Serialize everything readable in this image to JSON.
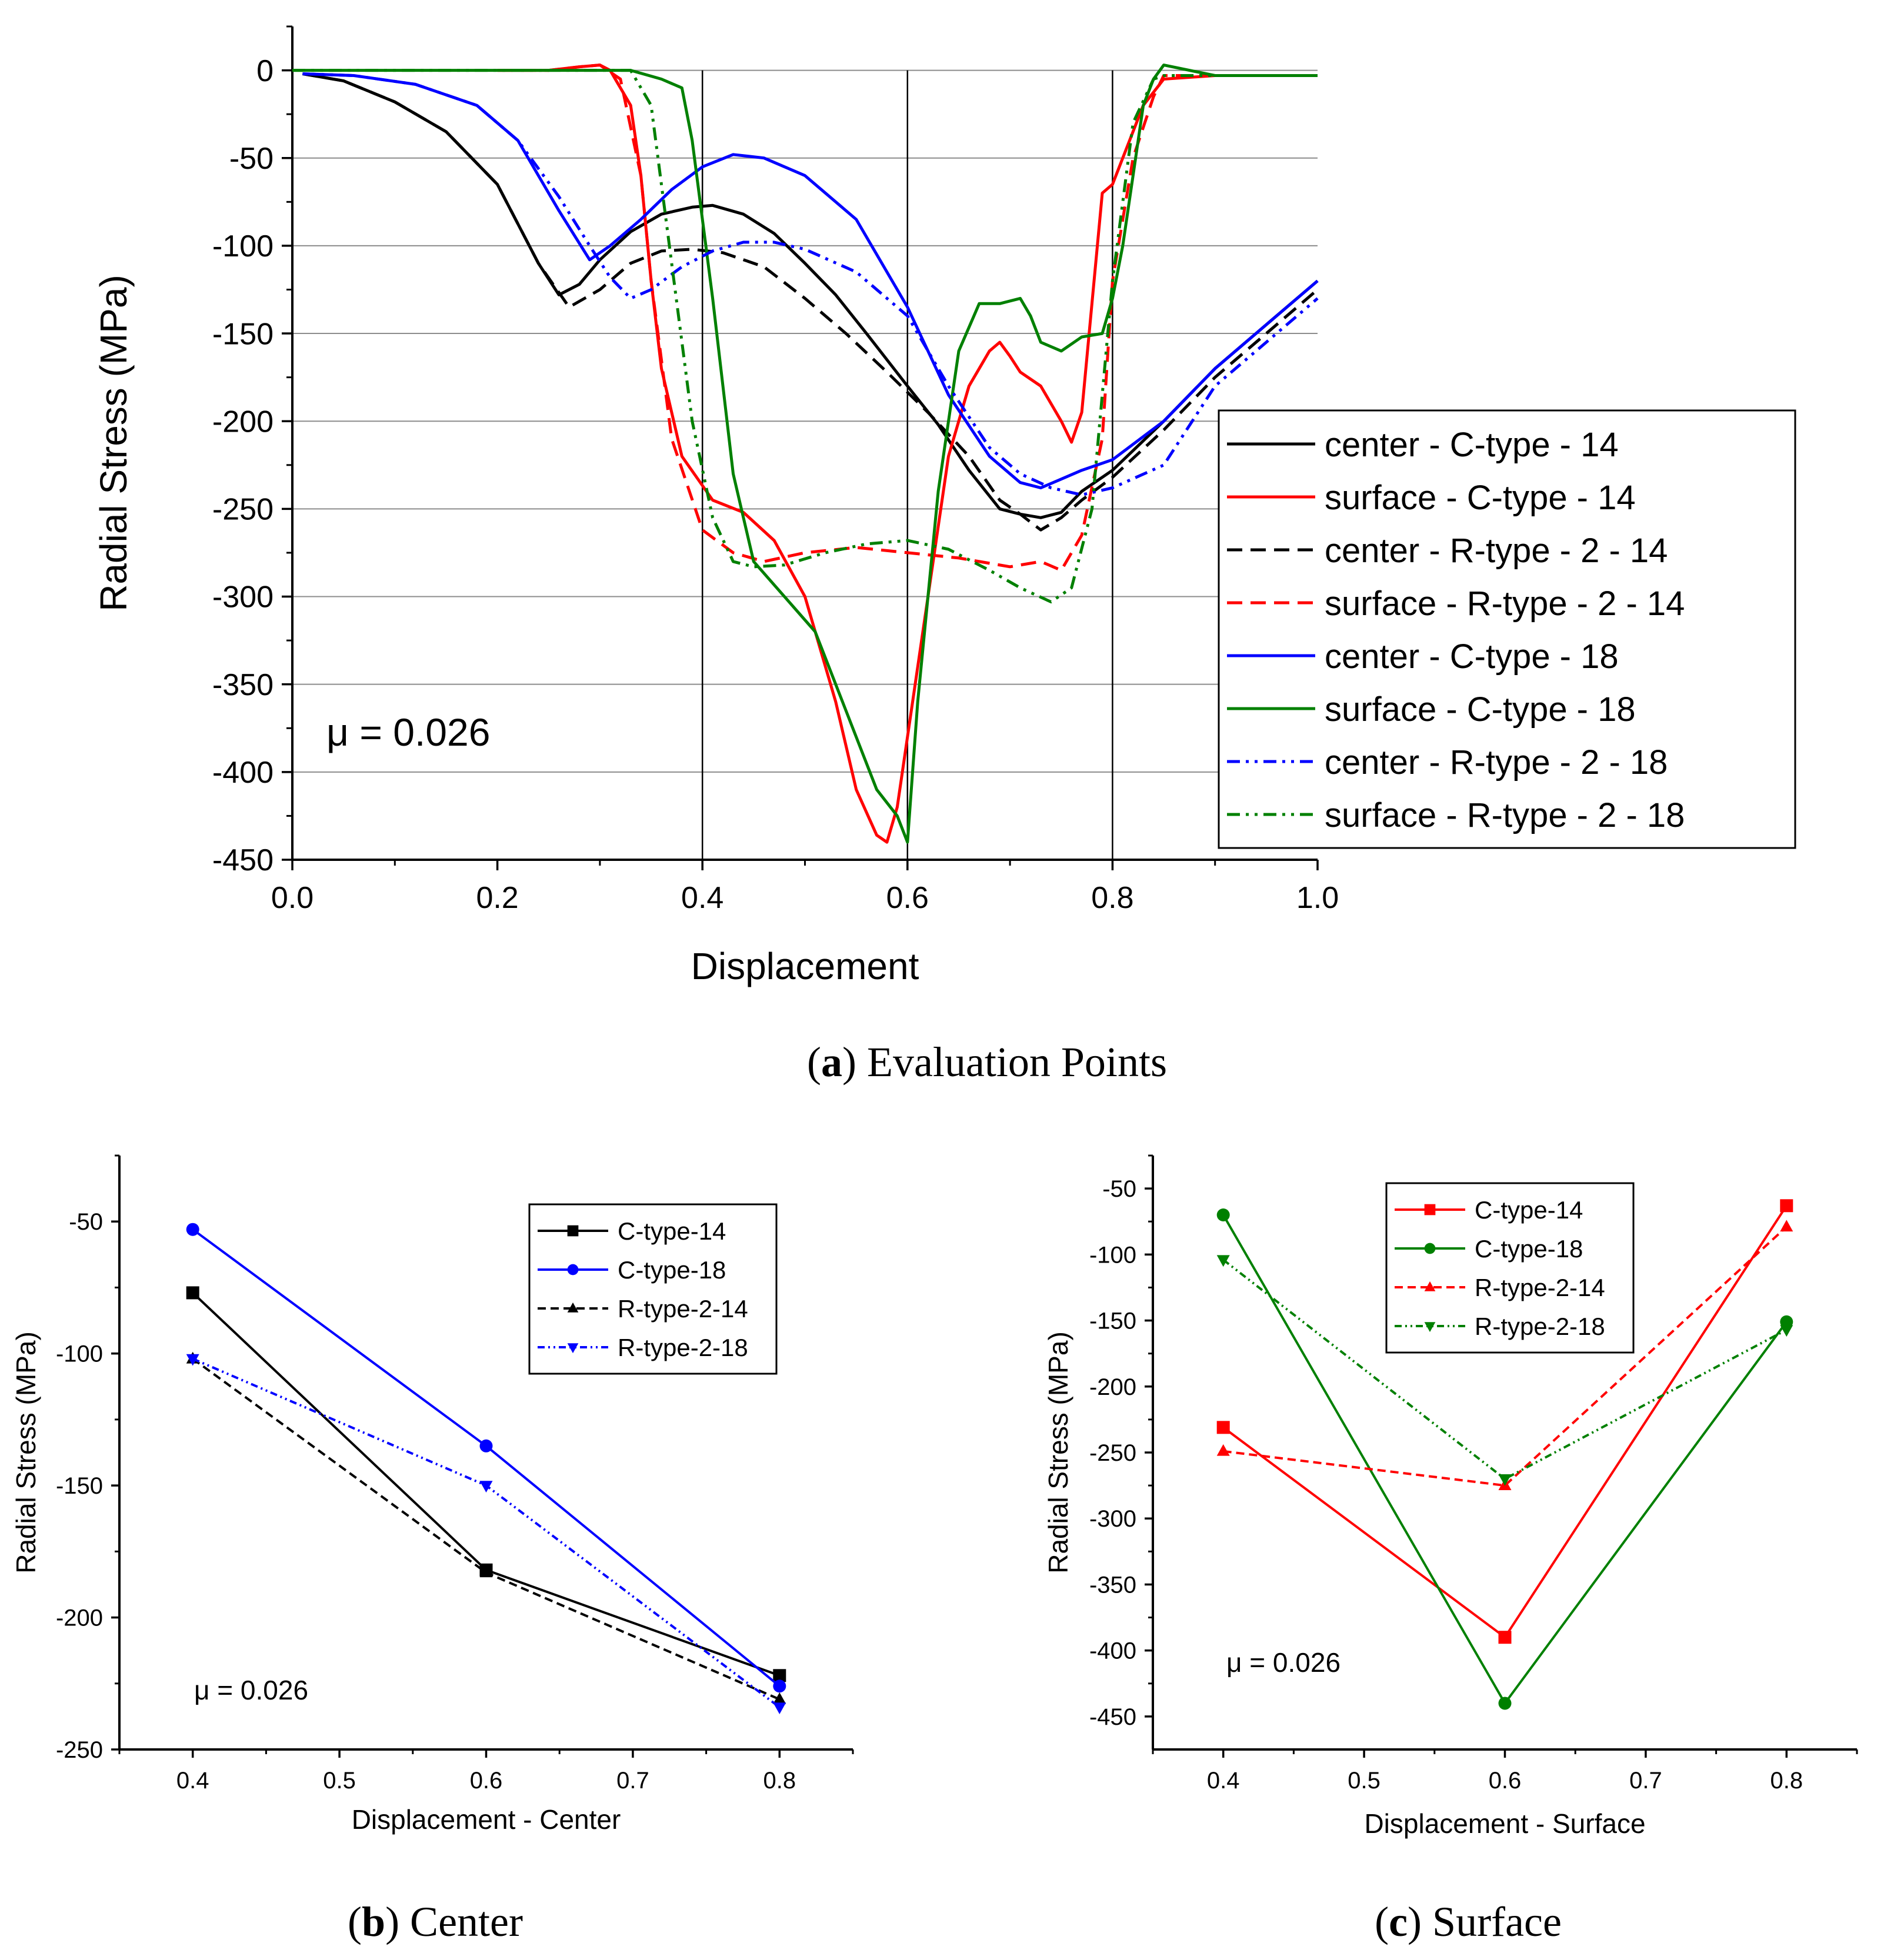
{
  "chart_data": [
    {
      "type": "line",
      "title": "",
      "caption_letter": "a",
      "caption_text": "Evaluation Points",
      "xlabel": "Displacement",
      "ylabel": "Radial Stress (MPa)",
      "xlim": [
        0.0,
        1.0
      ],
      "ylim": [
        -450,
        25
      ],
      "xticks": [
        0.0,
        0.2,
        0.4,
        0.6,
        0.8,
        1.0
      ],
      "xtick_labels": [
        "0.0",
        "0.2",
        "0.4",
        "0.6",
        "0.8",
        "1.0"
      ],
      "yticks": [
        0,
        -50,
        -100,
        -150,
        -200,
        -250,
        -300,
        -350,
        -400,
        -450
      ],
      "ytick_labels": [
        "0",
        "-50",
        "-100",
        "-150",
        "-200",
        "-250",
        "-300",
        "-350",
        "-400",
        "-450"
      ],
      "annotation": "μ = 0.026",
      "vertical_lines": [
        0.4,
        0.6,
        0.8
      ],
      "legend_position": "center-right",
      "series": [
        {
          "name": "center - C-type - 14",
          "color": "#000000",
          "dash": "solid",
          "x": [
            0.01,
            0.05,
            0.1,
            0.15,
            0.2,
            0.24,
            0.26,
            0.28,
            0.3,
            0.33,
            0.36,
            0.39,
            0.41,
            0.44,
            0.47,
            0.5,
            0.53,
            0.56,
            0.6,
            0.63,
            0.66,
            0.69,
            0.71,
            0.73,
            0.75,
            0.77,
            0.8,
            0.85,
            0.9,
            0.95,
            1.0
          ],
          "y": [
            -2,
            -6,
            -18,
            -35,
            -65,
            -110,
            -128,
            -122,
            -108,
            -92,
            -82,
            -78,
            -77,
            -82,
            -93,
            -110,
            -128,
            -150,
            -180,
            -202,
            -228,
            -250,
            -253,
            -255,
            -252,
            -240,
            -228,
            -200,
            -170,
            -145,
            -120
          ]
        },
        {
          "name": "surface - C-type - 14",
          "color": "#ff0000",
          "dash": "solid",
          "x": [
            0.2,
            0.25,
            0.28,
            0.3,
            0.31,
            0.33,
            0.34,
            0.35,
            0.36,
            0.38,
            0.41,
            0.44,
            0.47,
            0.5,
            0.53,
            0.55,
            0.57,
            0.58,
            0.59,
            0.6,
            0.62,
            0.64,
            0.66,
            0.68,
            0.69,
            0.7,
            0.71,
            0.73,
            0.75,
            0.76,
            0.77,
            0.79,
            0.8,
            0.81,
            0.83,
            0.85,
            0.9,
            0.95,
            1.0
          ],
          "y": [
            0,
            0,
            2,
            3,
            0,
            -20,
            -60,
            -120,
            -170,
            -220,
            -245,
            -252,
            -268,
            -300,
            -360,
            -410,
            -436,
            -440,
            -420,
            -380,
            -300,
            -220,
            -180,
            -160,
            -155,
            -163,
            -172,
            -180,
            -200,
            -212,
            -195,
            -70,
            -65,
            -50,
            -20,
            -5,
            -3,
            -3,
            -3
          ]
        },
        {
          "name": "center - R-type - 2 - 14",
          "color": "#000000",
          "dash": "dashed",
          "x": [
            0.01,
            0.05,
            0.1,
            0.15,
            0.2,
            0.24,
            0.27,
            0.3,
            0.33,
            0.36,
            0.39,
            0.42,
            0.46,
            0.5,
            0.54,
            0.58,
            0.62,
            0.66,
            0.69,
            0.71,
            0.73,
            0.75,
            0.77,
            0.8,
            0.85,
            0.9,
            0.95,
            1.0
          ],
          "y": [
            -2,
            -6,
            -18,
            -35,
            -65,
            -110,
            -135,
            -125,
            -110,
            -103,
            -102,
            -104,
            -112,
            -130,
            -150,
            -172,
            -195,
            -220,
            -245,
            -253,
            -262,
            -255,
            -245,
            -232,
            -205,
            -175,
            -150,
            -125
          ]
        },
        {
          "name": "surface - R-type - 2 - 14",
          "color": "#ff0000",
          "dash": "dashed",
          "x": [
            0.2,
            0.25,
            0.28,
            0.3,
            0.32,
            0.34,
            0.35,
            0.37,
            0.4,
            0.43,
            0.46,
            0.5,
            0.55,
            0.6,
            0.65,
            0.7,
            0.73,
            0.75,
            0.77,
            0.79,
            0.8,
            0.82,
            0.84,
            0.85,
            0.9,
            0.95,
            1.0
          ],
          "y": [
            0,
            0,
            2,
            3,
            -5,
            -60,
            -120,
            -210,
            -262,
            -275,
            -280,
            -275,
            -272,
            -275,
            -278,
            -283,
            -280,
            -285,
            -265,
            -210,
            -120,
            -50,
            -15,
            -3,
            -3,
            -3,
            -3
          ]
        },
        {
          "name": "center - C-type - 18",
          "color": "#0000ff",
          "dash": "solid",
          "x": [
            0.01,
            0.06,
            0.12,
            0.18,
            0.22,
            0.26,
            0.29,
            0.31,
            0.34,
            0.37,
            0.4,
            0.43,
            0.46,
            0.5,
            0.55,
            0.6,
            0.64,
            0.68,
            0.71,
            0.73,
            0.75,
            0.77,
            0.8,
            0.85,
            0.9,
            0.95,
            1.0
          ],
          "y": [
            -2,
            -3,
            -8,
            -20,
            -40,
            -80,
            -108,
            -100,
            -85,
            -68,
            -55,
            -48,
            -50,
            -60,
            -85,
            -135,
            -185,
            -220,
            -235,
            -238,
            -233,
            -228,
            -222,
            -200,
            -170,
            -145,
            -120
          ]
        },
        {
          "name": "surface - C-type - 18",
          "color": "#008000",
          "dash": "solid",
          "x": [
            0.0,
            0.1,
            0.2,
            0.3,
            0.33,
            0.36,
            0.38,
            0.39,
            0.41,
            0.43,
            0.45,
            0.48,
            0.51,
            0.54,
            0.57,
            0.59,
            0.6,
            0.61,
            0.63,
            0.65,
            0.67,
            0.69,
            0.71,
            0.72,
            0.73,
            0.75,
            0.77,
            0.79,
            0.8,
            0.81,
            0.82,
            0.83,
            0.84,
            0.85,
            0.9,
            0.95,
            1.0
          ],
          "y": [
            0,
            0,
            0,
            0,
            0,
            -5,
            -10,
            -40,
            -130,
            -230,
            -280,
            -300,
            -320,
            -365,
            -410,
            -425,
            -440,
            -360,
            -240,
            -160,
            -133,
            -133,
            -130,
            -140,
            -155,
            -160,
            -152,
            -150,
            -130,
            -100,
            -60,
            -20,
            -5,
            3,
            -3,
            -3,
            -3
          ]
        },
        {
          "name": "center - R-type - 2 - 18",
          "color": "#0000ff",
          "dash": "dashdotdot",
          "x": [
            0.01,
            0.06,
            0.12,
            0.18,
            0.22,
            0.26,
            0.29,
            0.31,
            0.33,
            0.35,
            0.38,
            0.41,
            0.44,
            0.47,
            0.5,
            0.55,
            0.6,
            0.64,
            0.68,
            0.71,
            0.74,
            0.77,
            0.8,
            0.85,
            0.9,
            0.95,
            1.0
          ],
          "y": [
            -2,
            -3,
            -8,
            -20,
            -40,
            -72,
            -100,
            -118,
            -130,
            -125,
            -112,
            -103,
            -98,
            -98,
            -102,
            -115,
            -140,
            -180,
            -215,
            -230,
            -238,
            -242,
            -238,
            -225,
            -180,
            -155,
            -130
          ]
        },
        {
          "name": "surface - R-type - 2 - 18",
          "color": "#008000",
          "dash": "dashdotdot",
          "x": [
            0.0,
            0.1,
            0.2,
            0.3,
            0.33,
            0.35,
            0.37,
            0.39,
            0.41,
            0.43,
            0.45,
            0.48,
            0.52,
            0.56,
            0.6,
            0.64,
            0.68,
            0.71,
            0.74,
            0.76,
            0.78,
            0.8,
            0.82,
            0.84,
            0.85,
            0.9,
            0.95,
            1.0
          ],
          "y": [
            0,
            0,
            0,
            0,
            0,
            -20,
            -110,
            -200,
            -255,
            -280,
            -283,
            -282,
            -275,
            -270,
            -268,
            -273,
            -285,
            -295,
            -303,
            -295,
            -250,
            -120,
            -30,
            -5,
            -3,
            -3,
            -3,
            -3
          ]
        }
      ]
    },
    {
      "type": "line",
      "title": "",
      "caption_letter": "b",
      "caption_text": "Center",
      "xlabel": "Displacement - Center",
      "ylabel": "Radial Stress (MPa)",
      "xlim": [
        0.35,
        0.85
      ],
      "ylim": [
        -250,
        -25
      ],
      "xticks": [
        0.4,
        0.5,
        0.6,
        0.7,
        0.8
      ],
      "xtick_labels": [
        "0.4",
        "0.5",
        "0.6",
        "0.7",
        "0.8"
      ],
      "yticks": [
        -50,
        -100,
        -150,
        -200,
        -250
      ],
      "ytick_labels": [
        "-50",
        "-100",
        "-150",
        "-200",
        "-250"
      ],
      "annotation": "μ = 0.026",
      "legend_position": "top-right",
      "series": [
        {
          "name": "C-type-14",
          "color": "#000000",
          "dash": "solid",
          "marker": "square",
          "x": [
            0.4,
            0.6,
            0.8
          ],
          "y": [
            -77,
            -182,
            -222
          ]
        },
        {
          "name": "C-type-18",
          "color": "#0000ff",
          "dash": "solid",
          "marker": "circle",
          "x": [
            0.4,
            0.6,
            0.8
          ],
          "y": [
            -53,
            -135,
            -226
          ]
        },
        {
          "name": "R-type-2-14",
          "color": "#000000",
          "dash": "dashed",
          "marker": "triangle-up",
          "x": [
            0.4,
            0.6,
            0.8
          ],
          "y": [
            -102,
            -183,
            -231
          ]
        },
        {
          "name": "R-type-2-18",
          "color": "#0000ff",
          "dash": "dashdotdot",
          "marker": "triangle-down",
          "x": [
            0.4,
            0.6,
            0.8
          ],
          "y": [
            -102,
            -150,
            -234
          ]
        }
      ]
    },
    {
      "type": "line",
      "title": "",
      "caption_letter": "c",
      "caption_text": "Surface",
      "xlabel": "Displacement - Surface",
      "ylabel": "Radial Stress (MPa)",
      "xlim": [
        0.35,
        0.85
      ],
      "ylim": [
        -475,
        -25
      ],
      "xticks": [
        0.4,
        0.5,
        0.6,
        0.7,
        0.8
      ],
      "xtick_labels": [
        "0.4",
        "0.5",
        "0.6",
        "0.7",
        "0.8"
      ],
      "yticks": [
        -50,
        -100,
        -150,
        -200,
        -250,
        -300,
        -350,
        -400,
        -450
      ],
      "ytick_labels": [
        "-50",
        "-100",
        "-150",
        "-200",
        "-250",
        "-300",
        "-350",
        "-400",
        "-450"
      ],
      "annotation": "μ = 0.026",
      "legend_position": "top-left",
      "series": [
        {
          "name": "C-type-14",
          "color": "#ff0000",
          "dash": "solid",
          "marker": "square",
          "x": [
            0.4,
            0.6,
            0.8
          ],
          "y": [
            -231,
            -390,
            -63
          ]
        },
        {
          "name": "C-type-18",
          "color": "#008000",
          "dash": "solid",
          "marker": "circle",
          "x": [
            0.4,
            0.6,
            0.8
          ],
          "y": [
            -70,
            -440,
            -151
          ]
        },
        {
          "name": "R-type-2-14",
          "color": "#ff0000",
          "dash": "dashed",
          "marker": "triangle-up",
          "x": [
            0.4,
            0.6,
            0.8
          ],
          "y": [
            -249,
            -275,
            -79
          ]
        },
        {
          "name": "R-type-2-18",
          "color": "#008000",
          "dash": "dashdotdot",
          "marker": "triangle-down",
          "x": [
            0.4,
            0.6,
            0.8
          ],
          "y": [
            -104,
            -270,
            -157
          ]
        }
      ]
    }
  ]
}
